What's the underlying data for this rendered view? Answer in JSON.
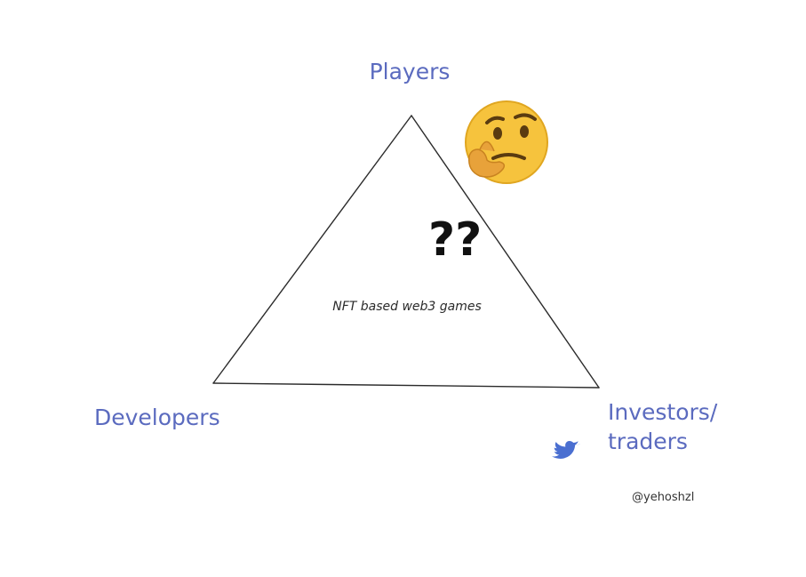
{
  "diagram": {
    "top_label": "Players",
    "left_label": "Developers",
    "right_label_line1": "Investors/",
    "right_label_line2": "traders",
    "center_label": "NFT based web3 games",
    "question_marks": "??",
    "emoji_icon": "thinking-face-icon",
    "footer": {
      "icon": "twitter-bird-icon",
      "handle": "@yehoshzl"
    },
    "colors": {
      "label": "#5b6bbf",
      "line": "#2b2b2b",
      "emoji_face": "#f6c33d",
      "twitter": "#4a6fd1"
    }
  }
}
